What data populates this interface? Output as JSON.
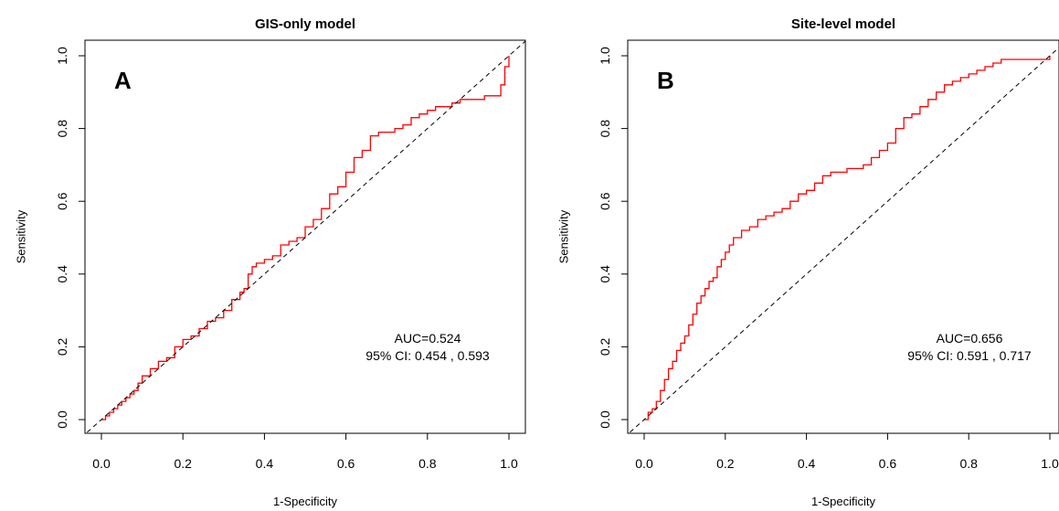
{
  "chart_data": [
    {
      "type": "line",
      "title": "GIS-only model",
      "panel_label": "A",
      "xlabel": "1-Specificity",
      "ylabel": "Sensitivity",
      "xlim": [
        0,
        1
      ],
      "ylim": [
        0,
        1
      ],
      "x_ticks": [
        "0.0",
        "0.2",
        "0.4",
        "0.6",
        "0.8",
        "1.0"
      ],
      "y_ticks": [
        "0.0",
        "0.2",
        "0.4",
        "0.6",
        "0.8",
        "1.0"
      ],
      "annotation_line1": "AUC=0.524",
      "annotation_line2": "95% CI:  0.454 , 0.593",
      "series": [
        {
          "color": "#ff0000",
          "x": [
            0.0,
            0.01,
            0.02,
            0.03,
            0.04,
            0.05,
            0.06,
            0.07,
            0.08,
            0.09,
            0.1,
            0.12,
            0.14,
            0.16,
            0.18,
            0.2,
            0.22,
            0.24,
            0.26,
            0.28,
            0.3,
            0.32,
            0.34,
            0.35,
            0.36,
            0.37,
            0.38,
            0.4,
            0.42,
            0.44,
            0.46,
            0.48,
            0.5,
            0.52,
            0.54,
            0.56,
            0.58,
            0.6,
            0.62,
            0.64,
            0.66,
            0.68,
            0.7,
            0.72,
            0.74,
            0.76,
            0.78,
            0.8,
            0.82,
            0.84,
            0.86,
            0.88,
            0.9,
            0.92,
            0.94,
            0.96,
            0.98,
            0.99,
            1.0
          ],
          "y": [
            0.0,
            0.01,
            0.02,
            0.03,
            0.04,
            0.05,
            0.06,
            0.07,
            0.08,
            0.1,
            0.12,
            0.14,
            0.16,
            0.17,
            0.2,
            0.22,
            0.23,
            0.25,
            0.27,
            0.28,
            0.3,
            0.33,
            0.35,
            0.36,
            0.4,
            0.42,
            0.43,
            0.44,
            0.45,
            0.48,
            0.49,
            0.5,
            0.53,
            0.55,
            0.58,
            0.62,
            0.64,
            0.68,
            0.72,
            0.74,
            0.78,
            0.79,
            0.79,
            0.8,
            0.81,
            0.83,
            0.84,
            0.85,
            0.86,
            0.86,
            0.87,
            0.88,
            0.88,
            0.88,
            0.89,
            0.89,
            0.92,
            0.97,
            1.0
          ]
        },
        {
          "color": "#000000",
          "x": [
            0,
            1
          ],
          "y": [
            0,
            1
          ]
        }
      ]
    },
    {
      "type": "line",
      "title": "Site-level model",
      "panel_label": "B",
      "xlabel": "1-Specificity",
      "ylabel": "Sensitivity",
      "xlim": [
        0,
        1
      ],
      "ylim": [
        0,
        1
      ],
      "x_ticks": [
        "0.0",
        "0.2",
        "0.4",
        "0.6",
        "0.8",
        "1.0"
      ],
      "y_ticks": [
        "0.0",
        "0.2",
        "0.4",
        "0.6",
        "0.8",
        "1.0"
      ],
      "annotation_line1": "AUC=0.656",
      "annotation_line2": "95% CI:  0.591 , 0.717",
      "series": [
        {
          "color": "#ff0000",
          "x": [
            0.0,
            0.01,
            0.02,
            0.03,
            0.04,
            0.05,
            0.06,
            0.07,
            0.08,
            0.09,
            0.1,
            0.11,
            0.12,
            0.13,
            0.14,
            0.15,
            0.16,
            0.17,
            0.18,
            0.19,
            0.2,
            0.21,
            0.22,
            0.24,
            0.26,
            0.28,
            0.3,
            0.32,
            0.34,
            0.36,
            0.38,
            0.4,
            0.42,
            0.44,
            0.46,
            0.48,
            0.5,
            0.52,
            0.54,
            0.56,
            0.58,
            0.6,
            0.62,
            0.64,
            0.66,
            0.68,
            0.7,
            0.72,
            0.74,
            0.76,
            0.78,
            0.8,
            0.82,
            0.84,
            0.86,
            0.88,
            0.92,
            0.96,
            1.0
          ],
          "y": [
            0.0,
            0.02,
            0.03,
            0.05,
            0.08,
            0.11,
            0.14,
            0.16,
            0.19,
            0.21,
            0.23,
            0.26,
            0.29,
            0.32,
            0.34,
            0.36,
            0.38,
            0.39,
            0.42,
            0.44,
            0.46,
            0.48,
            0.5,
            0.52,
            0.53,
            0.55,
            0.56,
            0.57,
            0.58,
            0.6,
            0.62,
            0.63,
            0.65,
            0.67,
            0.68,
            0.68,
            0.69,
            0.69,
            0.7,
            0.72,
            0.74,
            0.76,
            0.8,
            0.83,
            0.84,
            0.86,
            0.88,
            0.9,
            0.92,
            0.93,
            0.94,
            0.95,
            0.96,
            0.97,
            0.98,
            0.99,
            0.99,
            0.99,
            1.0
          ]
        },
        {
          "color": "#000000",
          "x": [
            0,
            1
          ],
          "y": [
            0,
            1
          ]
        }
      ]
    }
  ]
}
